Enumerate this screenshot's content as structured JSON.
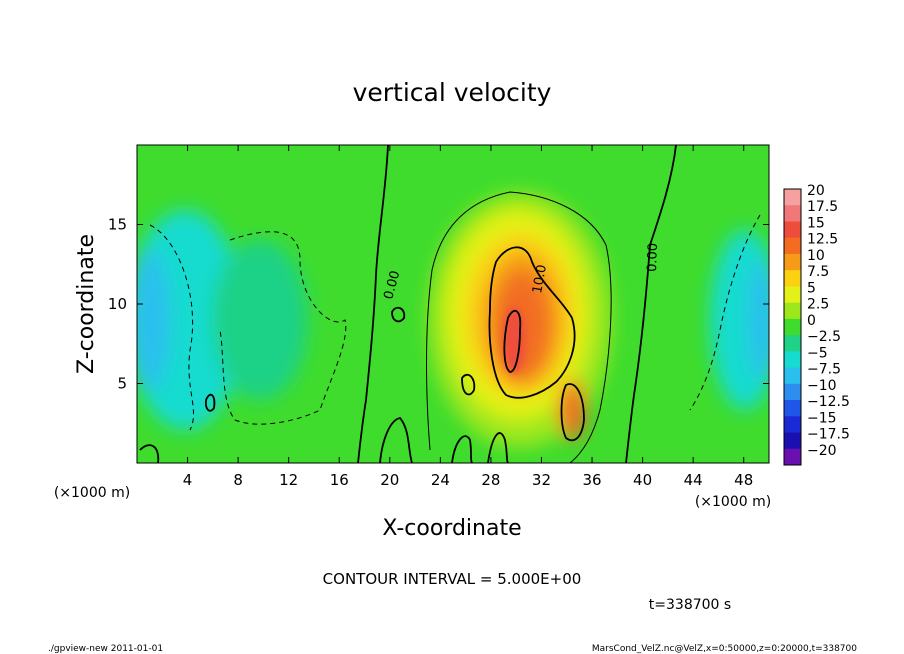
{
  "chart_data": {
    "type": "heatmap",
    "title": "vertical velocity",
    "xlabel": "X-coordinate",
    "ylabel": "Z-coordinate",
    "x_unit": "(×1000 m)",
    "y_unit": "(×1000 m)",
    "xlim": [
      0,
      50
    ],
    "ylim": [
      0,
      20
    ],
    "x_ticks": [
      4,
      8,
      12,
      16,
      20,
      24,
      28,
      32,
      36,
      40,
      44,
      48
    ],
    "y_ticks": [
      5,
      10,
      15
    ],
    "colorbar": {
      "labels": [
        "20",
        "17.5",
        "15",
        "12.5",
        "10",
        "7.5",
        "5",
        "2.5",
        "0",
        "−2.5",
        "−5",
        "−7.5",
        "−10",
        "−12.5",
        "−15",
        "−17.5",
        "−20"
      ],
      "colors": [
        "#f6a0a0",
        "#f07878",
        "#ef4d3c",
        "#f26d22",
        "#f59b18",
        "#fbd112",
        "#e3f118",
        "#9ce81a",
        "#3fdc2e",
        "#1fd286",
        "#18dbcf",
        "#2ac0ee",
        "#2e8ef0",
        "#1f55e8",
        "#1b2ad6",
        "#1a10b0",
        "#6a10b0"
      ]
    },
    "contour_labels": [
      "0.00",
      "0.00",
      "10.0"
    ],
    "contour_interval_label": "CONTOUR INTERVAL = 5.000E+00",
    "time_label": "t=338700 s"
  },
  "footer": {
    "left": "./gpview-new  2011-01-01",
    "right": "MarsCond_VelZ.nc@VelZ,x=0:50000,z=0:20000,t=338700"
  },
  "colors": {
    "background_field": "#3fdc2e",
    "updraft_core": "#ef4d3c",
    "downdraft": "#18dbcf"
  }
}
